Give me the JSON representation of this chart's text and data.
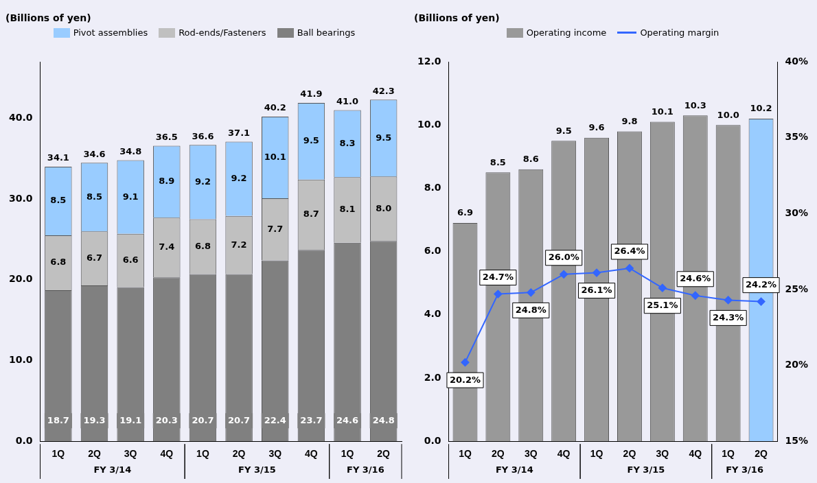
{
  "chart_data": [
    {
      "type": "bar",
      "stacked": true,
      "ylabel": "(Billions of yen)",
      "legend": "top",
      "categories": [
        "1Q",
        "2Q",
        "3Q",
        "4Q",
        "1Q",
        "2Q",
        "3Q",
        "4Q",
        "1Q",
        "2Q"
      ],
      "annotations": [
        "FY 3/14",
        "FY 3/15",
        "FY 3/16"
      ],
      "series": [
        {
          "name": "Ball bearings",
          "color": "#808080",
          "values": [
            18.7,
            19.3,
            19.1,
            20.3,
            20.7,
            20.7,
            22.4,
            23.7,
            24.6,
            24.8
          ],
          "value_labels": [
            "18.7",
            "19.3",
            "19.1",
            "20.3",
            "20.7",
            "20.7",
            "22.4",
            "23.7",
            "24.6",
            "24.8"
          ]
        },
        {
          "name": "Rod-ends/Fasteners",
          "color": "#c0c0c0",
          "values": [
            6.8,
            6.7,
            6.6,
            7.4,
            6.8,
            7.2,
            7.7,
            8.7,
            8.1,
            8.0
          ],
          "value_labels": [
            "6.8",
            "6.7",
            "6.6",
            "7.4",
            "6.8",
            "7.2",
            "7.7",
            "8.7",
            "8.1",
            "8.0"
          ]
        },
        {
          "name": "Pivot assemblies",
          "color": "#99ccff",
          "values": [
            8.5,
            8.5,
            9.1,
            8.9,
            9.2,
            9.2,
            10.1,
            9.5,
            8.3,
            9.5
          ],
          "value_labels": [
            "8.5",
            "8.5",
            "9.1",
            "8.9",
            "9.2",
            "9.2",
            "10.1",
            "9.5",
            "8.3",
            "9.5"
          ]
        }
      ],
      "totals": [
        "34.1",
        "34.6",
        "34.8",
        "36.5",
        "36.6",
        "37.1",
        "40.2",
        "41.9",
        "41.0",
        "42.3"
      ],
      "ylim": [
        0,
        47
      ],
      "yticks": [
        {
          "value": 0,
          "label": "0.0"
        },
        {
          "value": 10,
          "label": "10.0"
        },
        {
          "value": 20,
          "label": "20.0"
        },
        {
          "value": 30,
          "label": "30.0"
        },
        {
          "value": 40,
          "label": "40.0"
        }
      ]
    },
    {
      "type": "bar",
      "ylabel": "(Billions of yen)",
      "legend": "top",
      "marker": "diamond",
      "categories": [
        "1Q",
        "2Q",
        "3Q",
        "4Q",
        "1Q",
        "2Q",
        "3Q",
        "4Q",
        "1Q",
        "2Q"
      ],
      "annotations": [
        "FY 3/14",
        "FY 3/15",
        "FY 3/16"
      ],
      "series": [
        {
          "name": "Operating income",
          "color": "#999999",
          "colors": [
            "#999999",
            "#999999",
            "#999999",
            "#999999",
            "#999999",
            "#999999",
            "#999999",
            "#999999",
            "#999999",
            "#99ccff"
          ],
          "values": [
            6.9,
            8.5,
            8.6,
            9.5,
            9.6,
            9.8,
            10.1,
            10.3,
            10.0,
            10.2
          ],
          "value_labels": [
            "6.9",
            "8.5",
            "8.6",
            "9.5",
            "9.6",
            "9.8",
            "10.1",
            "10.3",
            "10.0",
            "10.2"
          ]
        },
        {
          "name": "Operating margin",
          "type": "line",
          "axis": "y2",
          "color": "#3366ff",
          "values": [
            20.2,
            24.7,
            24.8,
            26.0,
            26.1,
            26.4,
            25.1,
            24.6,
            24.3,
            24.2
          ],
          "value_labels": [
            "20.2%",
            "24.7%",
            "24.8%",
            "26.0%",
            "26.1%",
            "26.4%",
            "25.1%",
            "24.6%",
            "24.3%",
            "24.2%"
          ]
        }
      ],
      "ylim": [
        0,
        12
      ],
      "yticks": [
        {
          "value": 0,
          "label": "0.0"
        },
        {
          "value": 2,
          "label": "2.0"
        },
        {
          "value": 4,
          "label": "4.0"
        },
        {
          "value": 6,
          "label": "6.0"
        },
        {
          "value": 8,
          "label": "8.0"
        },
        {
          "value": 10,
          "label": "10.0"
        },
        {
          "value": 12,
          "label": "12.0"
        }
      ],
      "y2lim": [
        15,
        40
      ],
      "y2ticks": [
        {
          "value": 15,
          "label": "15%"
        },
        {
          "value": 20,
          "label": "20%"
        },
        {
          "value": 25,
          "label": "25%"
        },
        {
          "value": 30,
          "label": "30%"
        },
        {
          "value": 35,
          "label": "35%"
        },
        {
          "value": 40,
          "label": "40%"
        }
      ]
    }
  ]
}
